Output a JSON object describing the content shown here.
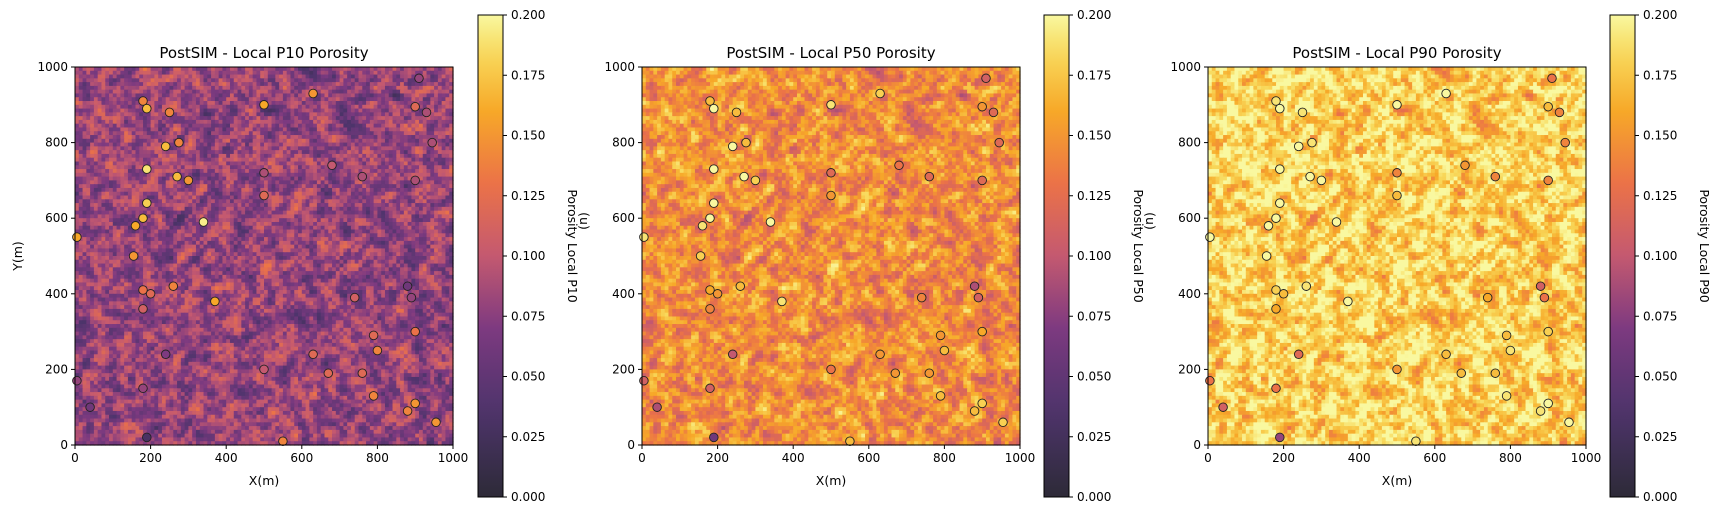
{
  "chart_data": [
    {
      "type": "heatmap",
      "title": "PostSIM - Local P10 Porosity",
      "xlabel": "X(m)",
      "ylabel": "Y(m)",
      "xlim": [
        0,
        1000
      ],
      "ylim": [
        0,
        1000
      ],
      "xticks": [
        "0",
        "200",
        "400",
        "600",
        "800",
        "1000"
      ],
      "yticks": [
        "0",
        "200",
        "400",
        "600",
        "800",
        "1000"
      ],
      "colorbar": {
        "label": "Porosity Local P10",
        "overlay": "(u)",
        "range": [
          0.0,
          0.2
        ],
        "ticks": [
          "0.000",
          "0.025",
          "0.050",
          "0.075",
          "0.100",
          "0.125",
          "0.150",
          "0.175",
          "0.200"
        ],
        "colormap": "inferno"
      },
      "mean_porosity": 0.08,
      "grid": "off"
    },
    {
      "type": "heatmap",
      "title": "PostSIM - Local P50 Porosity",
      "xlabel": "X(m)",
      "ylabel": "",
      "xlim": [
        0,
        1000
      ],
      "ylim": [
        0,
        1000
      ],
      "xticks": [
        "0",
        "200",
        "400",
        "600",
        "800",
        "1000"
      ],
      "yticks": [
        "0",
        "200",
        "400",
        "600",
        "800",
        "1000"
      ],
      "colorbar": {
        "label": "Porosity Local P50",
        "overlay": "(u)",
        "range": [
          0.0,
          0.2
        ],
        "ticks": [
          "0.000",
          "0.025",
          "0.050",
          "0.075",
          "0.100",
          "0.125",
          "0.150",
          "0.175",
          "0.200"
        ],
        "colormap": "inferno"
      },
      "mean_porosity": 0.145,
      "grid": "off"
    },
    {
      "type": "heatmap",
      "title": "PostSIM - Local P90 Porosity",
      "xlabel": "X(m)",
      "ylabel": "",
      "xlim": [
        0,
        1000
      ],
      "ylim": [
        0,
        1000
      ],
      "xticks": [
        "0",
        "200",
        "400",
        "600",
        "800",
        "1000"
      ],
      "yticks": [
        "0",
        "200",
        "400",
        "600",
        "800",
        "1000"
      ],
      "colorbar": {
        "label": "Porosity Local P90",
        "overlay": "",
        "range": [
          0.0,
          0.2
        ],
        "ticks": [
          "0.000",
          "0.025",
          "0.050",
          "0.075",
          "0.100",
          "0.125",
          "0.150",
          "0.175",
          "0.200"
        ],
        "colormap": "inferno"
      },
      "mean_porosity": 0.18,
      "grid": "off"
    }
  ],
  "wells": [
    {
      "x": 5,
      "y": 550,
      "v": 0.16
    },
    {
      "x": 5,
      "y": 170,
      "v": 0.08
    },
    {
      "x": 40,
      "y": 100,
      "v": 0.06
    },
    {
      "x": 180,
      "y": 910,
      "v": 0.14
    },
    {
      "x": 190,
      "y": 890,
      "v": 0.17
    },
    {
      "x": 250,
      "y": 880,
      "v": 0.14
    },
    {
      "x": 240,
      "y": 790,
      "v": 0.17
    },
    {
      "x": 275,
      "y": 800,
      "v": 0.14
    },
    {
      "x": 190,
      "y": 730,
      "v": 0.19
    },
    {
      "x": 270,
      "y": 710,
      "v": 0.17
    },
    {
      "x": 300,
      "y": 700,
      "v": 0.15
    },
    {
      "x": 190,
      "y": 640,
      "v": 0.18
    },
    {
      "x": 180,
      "y": 600,
      "v": 0.17
    },
    {
      "x": 160,
      "y": 580,
      "v": 0.16
    },
    {
      "x": 340,
      "y": 590,
      "v": 0.195
    },
    {
      "x": 155,
      "y": 500,
      "v": 0.15
    },
    {
      "x": 180,
      "y": 410,
      "v": 0.13
    },
    {
      "x": 200,
      "y": 400,
      "v": 0.12
    },
    {
      "x": 260,
      "y": 420,
      "v": 0.14
    },
    {
      "x": 180,
      "y": 360,
      "v": 0.11
    },
    {
      "x": 370,
      "y": 380,
      "v": 0.16
    },
    {
      "x": 240,
      "y": 240,
      "v": 0.07
    },
    {
      "x": 180,
      "y": 150,
      "v": 0.08
    },
    {
      "x": 190,
      "y": 20,
      "v": 0.03
    },
    {
      "x": 500,
      "y": 900,
      "v": 0.16
    },
    {
      "x": 630,
      "y": 930,
      "v": 0.15
    },
    {
      "x": 500,
      "y": 720,
      "v": 0.09
    },
    {
      "x": 500,
      "y": 660,
      "v": 0.12
    },
    {
      "x": 680,
      "y": 740,
      "v": 0.1
    },
    {
      "x": 760,
      "y": 710,
      "v": 0.09
    },
    {
      "x": 500,
      "y": 200,
      "v": 0.1
    },
    {
      "x": 550,
      "y": 10,
      "v": 0.14
    },
    {
      "x": 630,
      "y": 240,
      "v": 0.12
    },
    {
      "x": 670,
      "y": 190,
      "v": 0.12
    },
    {
      "x": 740,
      "y": 390,
      "v": 0.11
    },
    {
      "x": 760,
      "y": 190,
      "v": 0.12
    },
    {
      "x": 790,
      "y": 290,
      "v": 0.12
    },
    {
      "x": 800,
      "y": 250,
      "v": 0.14
    },
    {
      "x": 790,
      "y": 130,
      "v": 0.14
    },
    {
      "x": 910,
      "y": 970,
      "v": 0.08
    },
    {
      "x": 900,
      "y": 895,
      "v": 0.12
    },
    {
      "x": 930,
      "y": 880,
      "v": 0.09
    },
    {
      "x": 945,
      "y": 800,
      "v": 0.09
    },
    {
      "x": 900,
      "y": 700,
      "v": 0.09
    },
    {
      "x": 880,
      "y": 420,
      "v": 0.06
    },
    {
      "x": 890,
      "y": 390,
      "v": 0.08
    },
    {
      "x": 900,
      "y": 300,
      "v": 0.13
    },
    {
      "x": 880,
      "y": 90,
      "v": 0.14
    },
    {
      "x": 900,
      "y": 110,
      "v": 0.15
    },
    {
      "x": 955,
      "y": 60,
      "v": 0.15
    }
  ]
}
